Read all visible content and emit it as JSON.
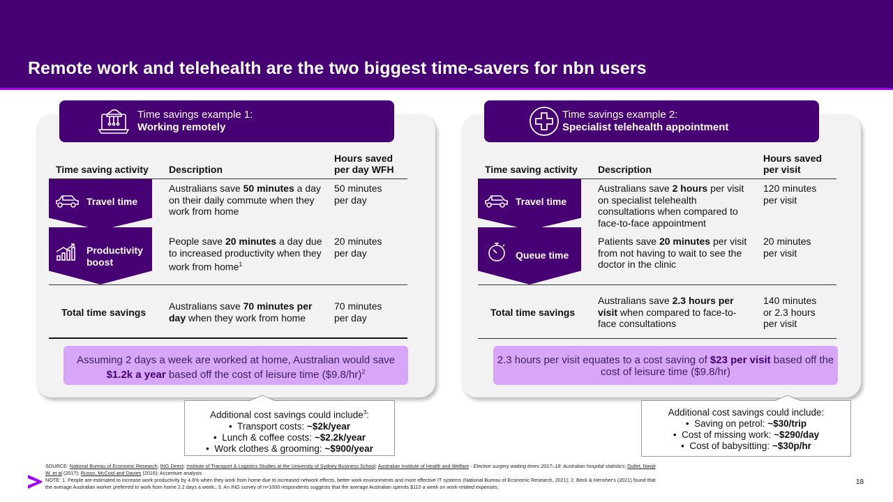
{
  "title": "Remote work and telehealth are the two biggest time-savers for nbn users",
  "example1": {
    "kicker": "Time savings example 1:",
    "name": "Working remotely",
    "icon": "laptop-cloud-icon",
    "headers": {
      "activity": "Time saving activity",
      "description": "Description",
      "hours_line1": "Hours saved",
      "hours_line2": "per day WFH"
    },
    "rows": [
      {
        "label": "Travel time",
        "icon": "car-icon",
        "desc_pre": "Australians save ",
        "desc_bold": "50 minutes",
        "desc_post": " a day on their daily commute when they work from home",
        "value_line1": "50 minutes",
        "value_line2": "per day"
      },
      {
        "label_line1": "Productivity",
        "label_line2": "boost",
        "icon": "growth-chart-icon",
        "desc_pre": "People save ",
        "desc_bold": "20 minutes",
        "desc_post": " a day due to increased productivity when they work from home",
        "desc_sup": "1",
        "value_line1": "20 minutes",
        "value_line2": "per day"
      }
    ],
    "total": {
      "label": "Total time savings",
      "desc_pre": "Australians save ",
      "desc_bold": "70 minutes per day",
      "desc_post": " when they work from home",
      "value_line1": "70 minutes",
      "value_line2": "per day"
    },
    "callout": {
      "pre": "Assuming 2 days a week are worked at home, Australian would save ",
      "bold": "$1.2k a year",
      "post": " based off the cost of leisure time ($9.8/hr)",
      "sup": "2"
    },
    "additional": {
      "heading": "Additional cost savings could include",
      "heading_sup": "3",
      "heading_suffix": ":",
      "items": [
        {
          "label": "Transport costs: ",
          "value": "~$2k/year"
        },
        {
          "label": "Lunch & coffee costs: ",
          "value": "~$2.2k/year"
        },
        {
          "label": "Work clothes & grooming: ",
          "value": "~$900/year"
        }
      ]
    }
  },
  "example2": {
    "kicker": "Time savings example 2:",
    "name": "Specialist telehealth appointment",
    "icon": "medical-cross-icon",
    "headers": {
      "activity": "Time saving activity",
      "description": "Description",
      "hours_line1": "Hours saved",
      "hours_line2": "per visit"
    },
    "rows": [
      {
        "label": "Travel time",
        "icon": "car-icon",
        "desc_pre": "Australians save ",
        "desc_bold": "2 hours",
        "desc_post": " per visit on specialist telehealth consultations when compared to face-to-face appointment",
        "value_line1": "120 minutes",
        "value_line2": "per visit"
      },
      {
        "label": "Queue time",
        "icon": "stopwatch-icon",
        "desc_pre": "Patients save ",
        "desc_bold": "20 minutes",
        "desc_post": " per visit from not having to wait to see the doctor in the clinic",
        "value_line1": "20 minutes",
        "value_line2": "per visit"
      }
    ],
    "total": {
      "label": "Total time savings",
      "desc_pre": "Australians save ",
      "desc_bold": "2.3 hours per visit",
      "desc_post": " when compared to face-to-face consultations",
      "value_line1": "140 minutes",
      "value_line2": "or 2.3 hours",
      "value_line3": "per visit"
    },
    "callout": {
      "pre": "2.3 hours per visit equates to a cost saving of ",
      "bold": "$23 per visit",
      "post": " based off the cost of leisure time ($9.8/hr)"
    },
    "additional": {
      "heading": "Additional cost savings could include:",
      "items": [
        {
          "label": "Saving on petrol: ",
          "value": "~$30/trip"
        },
        {
          "label": "Cost of missing work: ",
          "value": "~$290/day"
        },
        {
          "label": "Cost of babysitting: ",
          "value": "~$30p/hr"
        }
      ]
    }
  },
  "footnote": {
    "source_label": "SOURCE: ",
    "sources": [
      "National Bureau of Economic Research",
      "ING Direct",
      "Institute of Transport & Logistics Studies at the University of Sydney Business School",
      "Australian Institute of Health and Welfare"
    ],
    "aihw_title": "Elective surgery waiting times 2017–18: Australian hospital statistics",
    "dullet": "Dullet, Navjit W. et al",
    "dullet_year": " (2017); ",
    "russo": "Russo, McCool and Davies",
    "russo_year": " (2016); Accenture analysis",
    "note": "NOTE: 1. People are estimated to increase work productivity by 4.6% when they work from home due to increased network effects, better work environments and more effective IT systems (National Bureau of Economic Research, 2021); 2. Beck & Hensher's (2021) found that the average Australian worker preferred to work from home 2.2 days a week.; 3. An ING survey of n=1000 respondents suggests that the average Australian spends $110 a week on work-related expenses;"
  },
  "page_number": "18",
  "colors": {
    "header": "#460073",
    "accent": "#a100ff",
    "callout": "#d7a6f8",
    "panel": "#f2f2f2"
  }
}
